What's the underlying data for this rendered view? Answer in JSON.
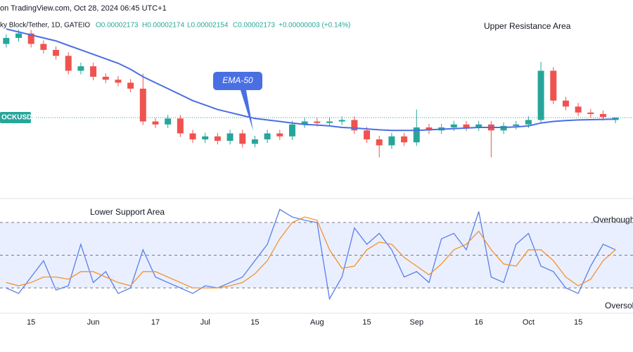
{
  "header": {
    "source": "on TradingView.com, Oct 28, 2024 06:45 UTC+1",
    "symbol": "ky Block/Tether, 1D, GATEIO",
    "open": "O0.00002173",
    "high": "H0.00002174",
    "low": "L0.00002154",
    "close": "C0.00002173",
    "change": "+0.00000003 (+0.14%)",
    "tag": "OCKUSDT"
  },
  "chart_data": [
    {
      "type": "candlestick",
      "ylim": [
        1.93e-05,
        2.52e-05
      ],
      "up_color": "#26a69a",
      "down_color": "#ef5350",
      "annotations": [
        "Upper Resistance Area",
        "EMA-50"
      ],
      "open": [
        2.42e-05,
        2.44e-05,
        2.455e-05,
        2.42e-05,
        2.4e-05,
        2.38e-05,
        2.33e-05,
        2.345e-05,
        2.31e-05,
        2.3e-05,
        2.29e-05,
        2.27e-05,
        2.16e-05,
        2.15e-05,
        2.17e-05,
        2.12e-05,
        2.1e-05,
        2.11e-05,
        2.095e-05,
        2.12e-05,
        2.085e-05,
        2.1e-05,
        2.12e-05,
        2.11e-05,
        2.15e-05,
        2.16e-05,
        2.155e-05,
        2.16e-05,
        2.165e-05,
        2.13e-05,
        2.1e-05,
        2.08e-05,
        2.11e-05,
        2.09e-05,
        2.14e-05,
        2.13e-05,
        2.14e-05,
        2.15e-05,
        2.14e-05,
        2.15e-05,
        2.13e-05,
        2.145e-05,
        2.15e-05,
        2.165e-05,
        2.33e-05,
        2.23e-05,
        2.21e-05,
        2.19e-05,
        2.185e-05,
        2.165e-05
      ],
      "high": [
        2.452e-05,
        2.467e-05,
        2.467e-05,
        2.432e-05,
        2.412e-05,
        2.392e-05,
        2.357e-05,
        2.357e-05,
        2.322e-05,
        2.312e-05,
        2.302e-05,
        2.32e-05,
        2.172e-05,
        2.182e-05,
        2.182e-05,
        2.132e-05,
        2.122e-05,
        2.122e-05,
        2.132e-05,
        2.132e-05,
        2.112e-05,
        2.132e-05,
        2.132e-05,
        2.162e-05,
        2.172e-05,
        2.172e-05,
        2.172e-05,
        2.177e-05,
        2.177e-05,
        2.142e-05,
        2.112e-05,
        2.122e-05,
        2.122e-05,
        2.2e-05,
        2.152e-05,
        2.152e-05,
        2.162e-05,
        2.162e-05,
        2.162e-05,
        2.162e-05,
        2.157e-05,
        2.162e-05,
        2.177e-05,
        2.36e-05,
        2.342e-05,
        2.242e-05,
        2.222e-05,
        2.202e-05,
        2.197e-05,
        2.174e-05
      ],
      "low": [
        2.408e-05,
        2.428e-05,
        2.408e-05,
        2.388e-05,
        2.368e-05,
        2.318e-05,
        2.318e-05,
        2.298e-05,
        2.288e-05,
        2.278e-05,
        2.258e-05,
        2.148e-05,
        2.138e-05,
        2.138e-05,
        2.108e-05,
        2.088e-05,
        2.088e-05,
        2.083e-05,
        2.083e-05,
        2.073e-05,
        2.073e-05,
        2.088e-05,
        2.098e-05,
        2.098e-05,
        2.138e-05,
        2.143e-05,
        2.143e-05,
        2.148e-05,
        2.118e-05,
        2.088e-05,
        2.04e-05,
        2.068e-05,
        2.078e-05,
        2.078e-05,
        2.118e-05,
        2.118e-05,
        2.128e-05,
        2.128e-05,
        2.128e-05,
        2.04e-05,
        2.118e-05,
        2.133e-05,
        2.138e-05,
        2.153e-05,
        2.218e-05,
        2.198e-05,
        2.178e-05,
        2.173e-05,
        2.163e-05,
        2.154e-05
      ],
      "close": [
        2.44e-05,
        2.455e-05,
        2.42e-05,
        2.4e-05,
        2.38e-05,
        2.33e-05,
        2.345e-05,
        2.31e-05,
        2.3e-05,
        2.29e-05,
        2.27e-05,
        2.16e-05,
        2.15e-05,
        2.17e-05,
        2.12e-05,
        2.1e-05,
        2.11e-05,
        2.095e-05,
        2.12e-05,
        2.085e-05,
        2.1e-05,
        2.12e-05,
        2.11e-05,
        2.15e-05,
        2.16e-05,
        2.155e-05,
        2.16e-05,
        2.165e-05,
        2.13e-05,
        2.1e-05,
        2.08e-05,
        2.11e-05,
        2.09e-05,
        2.14e-05,
        2.13e-05,
        2.14e-05,
        2.15e-05,
        2.14e-05,
        2.15e-05,
        2.13e-05,
        2.145e-05,
        2.15e-05,
        2.165e-05,
        2.33e-05,
        2.23e-05,
        2.21e-05,
        2.19e-05,
        2.185e-05,
        2.175e-05,
        2.173e-05
      ],
      "ema": {
        "color": "#4a6fe3",
        "values": [
          2.47e-05,
          2.46e-05,
          2.45e-05,
          2.44e-05,
          2.43e-05,
          2.415e-05,
          2.4e-05,
          2.385e-05,
          2.37e-05,
          2.355e-05,
          2.335e-05,
          2.31e-05,
          2.29e-05,
          2.27e-05,
          2.25e-05,
          2.23e-05,
          2.215e-05,
          2.2e-05,
          2.19e-05,
          2.18e-05,
          2.17e-05,
          2.165e-05,
          2.16e-05,
          2.155e-05,
          2.15e-05,
          2.148e-05,
          2.145e-05,
          2.14e-05,
          2.138e-05,
          2.135e-05,
          2.132e-05,
          2.13e-05,
          2.13e-05,
          2.13e-05,
          2.132e-05,
          2.134e-05,
          2.136e-05,
          2.138e-05,
          2.14e-05,
          2.14e-05,
          2.14e-05,
          2.142e-05,
          2.145e-05,
          2.155e-05,
          2.16e-05,
          2.163e-05,
          2.165e-05,
          2.166e-05,
          2.167e-05,
          2.168e-05
        ]
      }
    },
    {
      "type": "line",
      "ylim": [
        0,
        100
      ],
      "levels": [
        20,
        50,
        80
      ],
      "annotations": [
        "Lower Support Area",
        "Overbought",
        "Oversolo"
      ],
      "categories": [
        null,
        null,
        "15",
        null,
        null,
        null,
        null,
        "Jun",
        null,
        null,
        null,
        null,
        "17",
        null,
        null,
        null,
        "Jul",
        null,
        null,
        null,
        "15",
        null,
        null,
        null,
        null,
        "Aug",
        null,
        null,
        null,
        "15",
        null,
        null,
        null,
        "Sep",
        null,
        null,
        null,
        null,
        "16",
        null,
        null,
        null,
        "Oct",
        null,
        null,
        null,
        "15",
        null,
        null,
        null
      ],
      "series": [
        {
          "color": "#5b7fe8",
          "values": [
            20,
            15,
            30,
            45,
            18,
            22,
            60,
            25,
            35,
            15,
            20,
            55,
            30,
            25,
            20,
            15,
            22,
            20,
            25,
            30,
            45,
            60,
            92,
            85,
            82,
            80,
            10,
            30,
            75,
            60,
            70,
            55,
            30,
            35,
            25,
            65,
            70,
            55,
            90,
            30,
            25,
            60,
            70,
            40,
            35,
            20,
            15,
            40,
            60,
            55
          ]
        },
        {
          "color": "#f5922f",
          "values": [
            25,
            22,
            25,
            30,
            30,
            28,
            35,
            35,
            30,
            25,
            22,
            35,
            35,
            30,
            25,
            20,
            20,
            20,
            22,
            25,
            33,
            45,
            65,
            80,
            85,
            82,
            55,
            38,
            40,
            55,
            62,
            60,
            48,
            40,
            32,
            42,
            55,
            60,
            72,
            55,
            42,
            40,
            55,
            55,
            45,
            30,
            22,
            28,
            45,
            55
          ]
        }
      ]
    }
  ]
}
